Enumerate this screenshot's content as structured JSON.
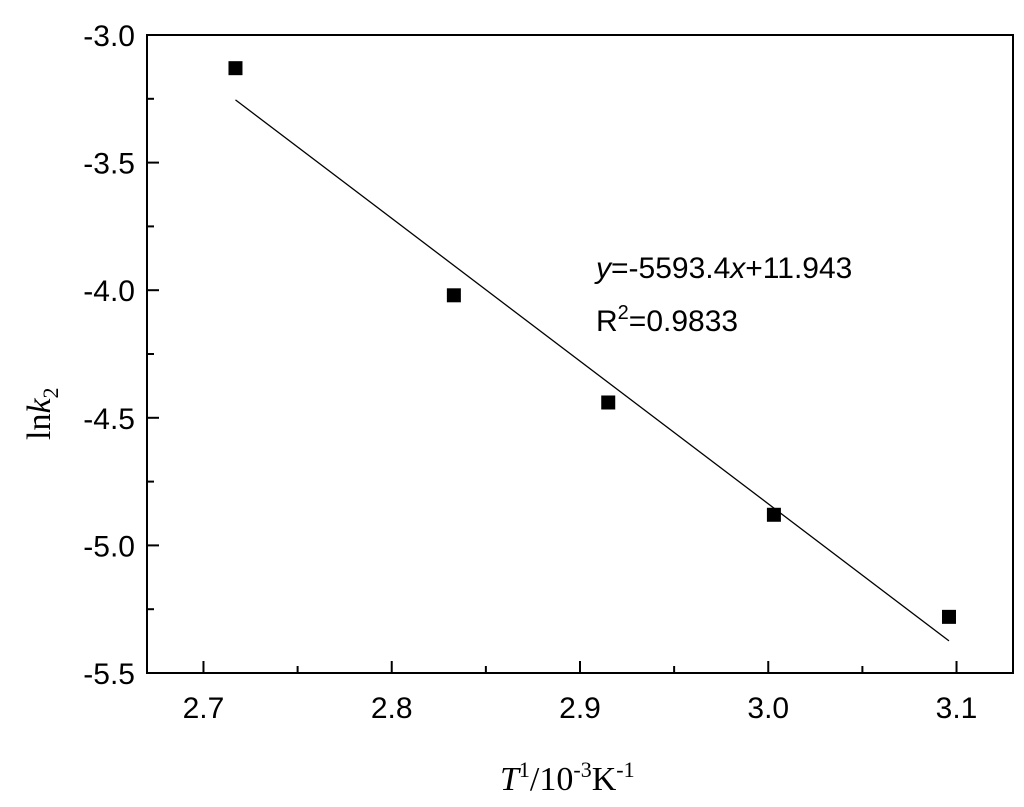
{
  "chart_data": {
    "type": "scatter",
    "title": "",
    "xlabel": {
      "main": "T",
      "exp1": "1",
      "mid": "/10",
      "exp2": "-3",
      "unit": "K",
      "exp3": "-1"
    },
    "ylabel": {
      "main": "ln",
      "var": "k",
      "sub": "2"
    },
    "xlim": [
      2.67,
      3.13
    ],
    "ylim": [
      -5.5,
      -3.0
    ],
    "xticks": [
      2.7,
      2.8,
      2.9,
      3.0,
      3.1
    ],
    "xtick_labels": [
      "2.7",
      "2.8",
      "2.9",
      "3.0",
      "3.1"
    ],
    "yticks": [
      -3.0,
      -3.5,
      -4.0,
      -4.5,
      -5.0,
      -5.5
    ],
    "ytick_labels": [
      "-3.0",
      "-3.5",
      "-4.0",
      "-4.5",
      "-5.0",
      "-5.5"
    ],
    "series": [
      {
        "marker": "square",
        "color": "#000000",
        "x": [
          2.717,
          2.833,
          2.915,
          3.003,
          3.096
        ],
        "y": [
          -3.13,
          -4.02,
          -4.44,
          -4.88,
          -5.28
        ]
      }
    ],
    "fit_line": {
      "slope": -5593.4,
      "intercept": 11.943,
      "x_range": [
        2.717,
        3.096
      ],
      "color": "#000000"
    },
    "annotations": {
      "equation": {
        "y": "y",
        "mid": "=-5593.4",
        "x": "x",
        "tail": "+11.943"
      },
      "r2": {
        "R": "R",
        "sup": "2",
        "val": "=0.9833"
      }
    },
    "grid": false,
    "legend": "none"
  }
}
